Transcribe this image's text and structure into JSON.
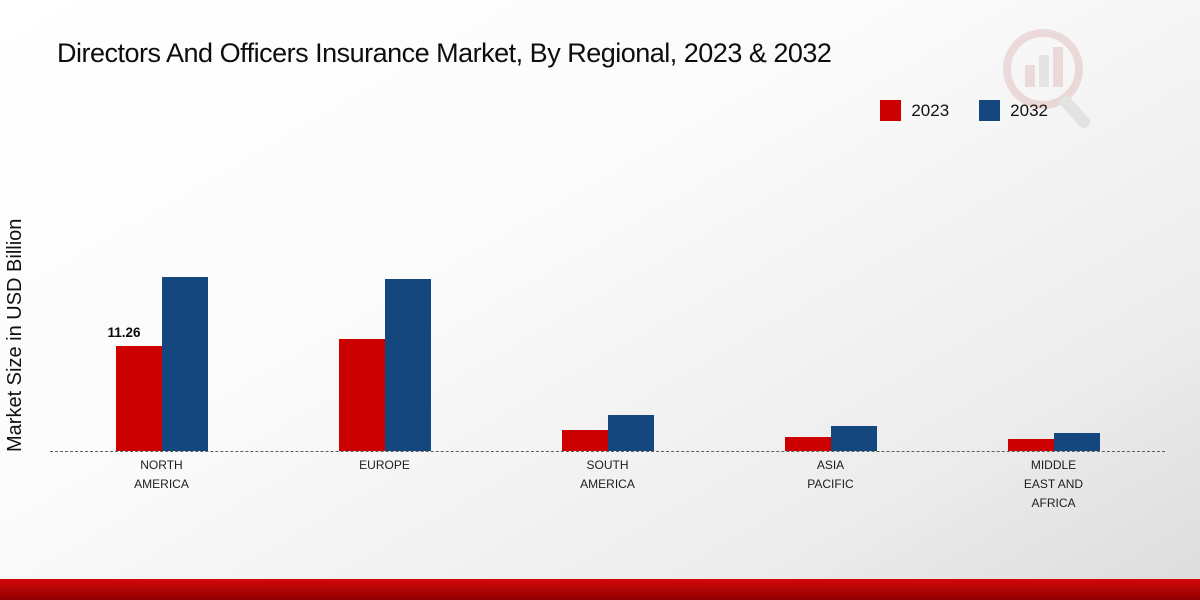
{
  "title": "Directors And Officers Insurance Market, By Regional, 2023 & 2032",
  "ylabel": "Market Size in USD Billion",
  "chart_data": {
    "type": "bar",
    "title": "Directors And Officers Insurance Market, By Regional, 2023 & 2032",
    "xlabel": "",
    "ylabel": "Market Size in USD Billion",
    "categories": [
      "NORTH AMERICA",
      "EUROPE",
      "SOUTH AMERICA",
      "ASIA PACIFIC",
      "MIDDLE EAST AND AFRICA"
    ],
    "series": [
      {
        "name": "2023",
        "color": "#cc0001",
        "values": [
          11.26,
          12.0,
          2.3,
          1.5,
          1.3
        ]
      },
      {
        "name": "2032",
        "color": "#15477f",
        "values": [
          18.6,
          18.4,
          3.9,
          2.7,
          1.9
        ]
      }
    ],
    "annotations": [
      {
        "category_index": 0,
        "series_index": 0,
        "text": "11.26"
      }
    ],
    "ylim": [
      0,
      20
    ],
    "baseline_style": "dashed",
    "grid": false,
    "legend_position": "top-right"
  },
  "legend": {
    "items": [
      {
        "label": "2023",
        "color": "#cc0001"
      },
      {
        "label": "2032",
        "color": "#15477f"
      }
    ]
  },
  "colors": {
    "accent_red": "#cc0001",
    "accent_blue": "#15477f",
    "footer_top": "#d40808",
    "footer_bottom": "#8f0000",
    "baseline": "#606060"
  }
}
